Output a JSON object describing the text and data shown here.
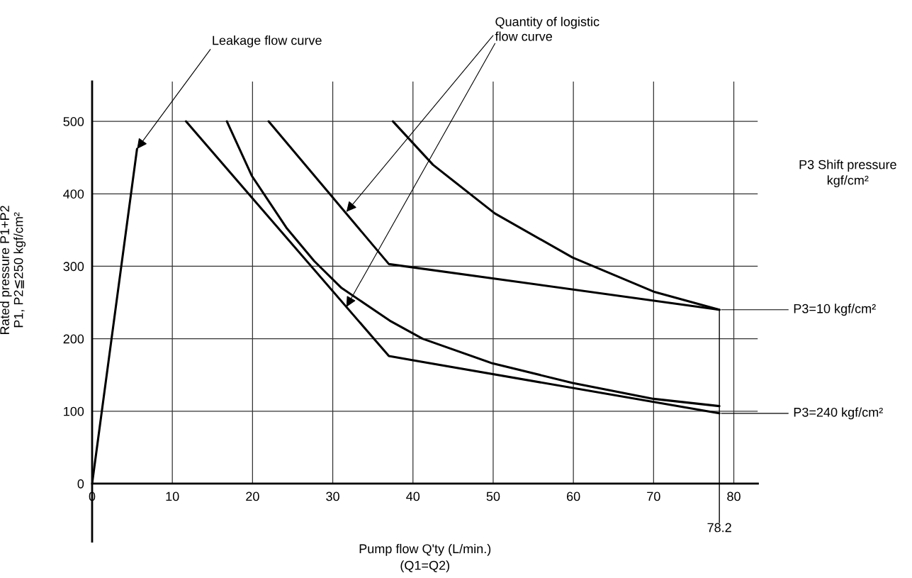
{
  "chart_data": {
    "type": "line",
    "xlabel": "Pump flow Q'ty (L/min.)\n(Q1=Q2)",
    "ylabel": "Rated pressure P1+P2\nP1, P2≦250 kgf/cm²",
    "xlim": [
      0,
      83
    ],
    "ylim": [
      -80,
      555
    ],
    "xticks": [
      0,
      10,
      20,
      30,
      40,
      50,
      60,
      70,
      80
    ],
    "yticks": [
      0,
      100,
      200,
      300,
      400,
      500
    ],
    "grid": true,
    "line_style": "solid",
    "marker": "none",
    "series": [
      {
        "color": "#000000",
        "x": [
          0,
          5.6
        ],
        "values": [
          0,
          462
        ]
      },
      {
        "color": "#000000",
        "x": [
          11.7,
          37.0,
          78.2
        ],
        "values": [
          500,
          176,
          97
        ]
      },
      {
        "color": "#000000",
        "x": [
          16.8,
          19.9,
          24.3,
          27.7,
          31.1,
          37.1,
          41.2,
          49.9,
          59.9,
          70.0,
          78.2
        ],
        "values": [
          500,
          425,
          352,
          307,
          270,
          225,
          200,
          166,
          139,
          117,
          107
        ]
      },
      {
        "color": "#000000",
        "x": [
          22.0,
          37.0,
          78.2
        ],
        "values": [
          500,
          303,
          240
        ]
      },
      {
        "color": "#000000",
        "x": [
          37.5,
          42.5,
          50.2,
          59.9,
          70.0,
          78.2
        ],
        "values": [
          500,
          440,
          373,
          312,
          265,
          240
        ]
      }
    ],
    "ref_lines": [
      {
        "axis": "x",
        "value": 78.2,
        "label": "78.2"
      }
    ],
    "annotations": [
      {
        "text": "Leakage flow curve",
        "x": 5.6,
        "y": 462
      },
      {
        "text": "Quantity of logistic\nflow curve",
        "x": 31.7,
        "y": 375
      },
      "P3 Shift pressure\nkgf/cm²",
      {
        "text": "P3=10 kgf/cm²",
        "x": 78.2,
        "y": 240
      },
      {
        "text": "P3=240 kgf/cm²",
        "x": 78.2,
        "y": 97
      }
    ]
  }
}
